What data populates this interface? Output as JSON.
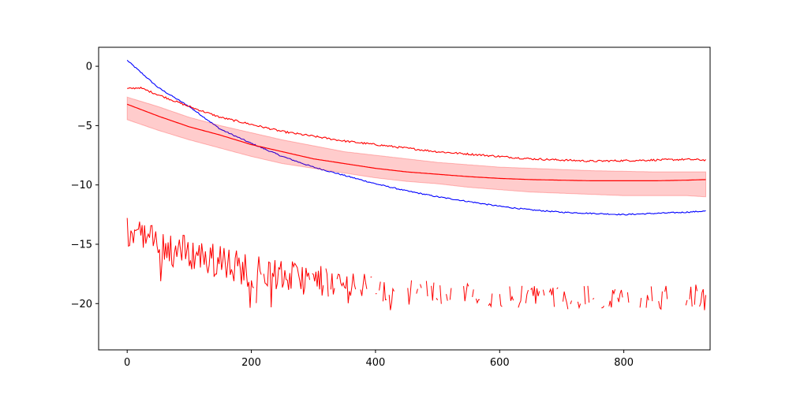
{
  "chart_data": {
    "type": "line",
    "title": "",
    "xlabel": "",
    "ylabel": "",
    "xlim": [
      -46,
      939
    ],
    "ylim": [
      -23.9,
      1.6
    ],
    "grid": false,
    "legend": "none",
    "x_ticks": [
      0,
      200,
      400,
      600,
      800
    ],
    "y_ticks": [
      0,
      -5,
      -10,
      -15,
      -20
    ],
    "x_tick_labels": [
      "0",
      "200",
      "400",
      "600",
      "800"
    ],
    "y_tick_labels": [
      "0",
      "−5",
      "−10",
      "−15",
      "−20"
    ],
    "x_max": 932,
    "colors": {
      "blue": "#0000ff",
      "red": "#ff0000",
      "band": "#ff0000"
    },
    "series": [
      {
        "color": "#0000ff",
        "style": "line",
        "noise": 0.05,
        "x": [
          0,
          50,
          100,
          150,
          200,
          250,
          300,
          350,
          400,
          450,
          500,
          550,
          600,
          650,
          700,
          750,
          800,
          850,
          900,
          932
        ],
        "y": [
          0.5,
          -1.8,
          -3.4,
          -5.3,
          -6.5,
          -7.6,
          -8.5,
          -9.2,
          -9.9,
          -10.5,
          -11.0,
          -11.4,
          -11.8,
          -12.1,
          -12.3,
          -12.4,
          -12.5,
          -12.4,
          -12.3,
          -12.2
        ]
      },
      {
        "color": "#ff0000",
        "style": "line",
        "noise": 0.08,
        "x": [
          0,
          20,
          50,
          100,
          150,
          200,
          250,
          300,
          350,
          400,
          450,
          500,
          550,
          600,
          650,
          700,
          750,
          800,
          850,
          900,
          932
        ],
        "y": [
          -1.9,
          -1.8,
          -2.4,
          -3.4,
          -4.3,
          -4.9,
          -5.5,
          -5.9,
          -6.3,
          -6.6,
          -6.9,
          -7.2,
          -7.4,
          -7.6,
          -7.8,
          -7.9,
          -8.0,
          -7.95,
          -7.9,
          -7.85,
          -7.9
        ]
      },
      {
        "color": "#ff0000",
        "style": "line-with-band",
        "noise": 0,
        "x": [
          0,
          50,
          100,
          150,
          200,
          250,
          300,
          350,
          400,
          450,
          500,
          550,
          600,
          650,
          700,
          750,
          800,
          850,
          900,
          932
        ],
        "y": [
          -3.2,
          -4.2,
          -5.1,
          -5.8,
          -6.6,
          -7.2,
          -7.8,
          -8.2,
          -8.6,
          -8.9,
          -9.1,
          -9.3,
          -9.45,
          -9.55,
          -9.6,
          -9.65,
          -9.65,
          -9.65,
          -9.6,
          -9.55
        ],
        "band_upper": [
          -2.6,
          -3.4,
          -4.3,
          -5.0,
          -5.6,
          -6.2,
          -6.7,
          -7.2,
          -7.5,
          -7.8,
          -8.1,
          -8.3,
          -8.5,
          -8.6,
          -8.7,
          -8.8,
          -8.85,
          -8.9,
          -8.9,
          -8.9
        ],
        "band_lower": [
          -4.5,
          -5.4,
          -6.2,
          -6.9,
          -7.6,
          -8.2,
          -8.6,
          -9.0,
          -9.4,
          -9.7,
          -9.9,
          -10.2,
          -10.4,
          -10.6,
          -10.7,
          -10.8,
          -10.9,
          -10.9,
          -10.9,
          -11.0
        ]
      },
      {
        "color": "#ff0000",
        "style": "noisy-gaps",
        "x": [
          0,
          25,
          50,
          100,
          150,
          200,
          250,
          300,
          350,
          400,
          450,
          500,
          550,
          600,
          650,
          700,
          750,
          800,
          850,
          900,
          932
        ],
        "y": [
          -14.0,
          -14.3,
          -15.0,
          -15.7,
          -16.5,
          -17.2,
          -17.7,
          -18.0,
          -18.4,
          -18.7,
          -19.0,
          -19.1,
          -19.2,
          -19.3,
          -19.4,
          -19.5,
          -19.5,
          -19.6,
          -19.5,
          -19.5,
          -19.3
        ],
        "spread": [
          1.3,
          1.4,
          1.5,
          1.5,
          1.5,
          1.5,
          1.4,
          1.3,
          1.2,
          1.2,
          1.1,
          1.0,
          1.0,
          1.0,
          1.0,
          1.0,
          1.0,
          1.0,
          1.0,
          1.0,
          1.0
        ]
      }
    ]
  }
}
